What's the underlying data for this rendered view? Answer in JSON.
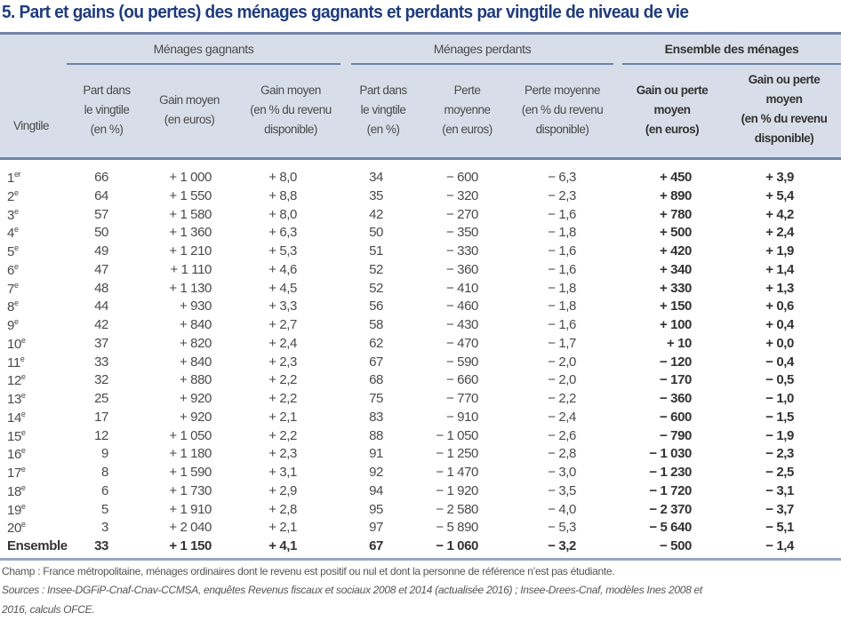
{
  "title": "5. Part et gains (ou pertes) des ménages gagnants et perdants par vingtile de niveau de vie",
  "groups": {
    "gagnants": "Ménages gagnants",
    "perdants": "Ménages perdants",
    "ensemble": "Ensemble des ménages"
  },
  "columns": [
    "Vingtile",
    "Part dans\nle vingtile\n(en %)",
    "Gain moyen\n(en euros)",
    "Gain moyen\n(en % du revenu\ndisponible)",
    "Part dans\nle vingtile\n(en %)",
    "Perte\nmoyenne\n(en euros)",
    "Perte moyenne\n(en % du revenu\ndisponible)",
    "Gain ou perte\nmoyen\n(en euros)",
    "Gain ou perte\nmoyen\n(en % du revenu\ndisponible)"
  ],
  "rows": [
    [
      "1",
      "er",
      "66",
      "+ 1 000",
      "+ 8,0",
      "34",
      "− 600",
      "− 6,3",
      "+ 450",
      "+ 3,9"
    ],
    [
      "2",
      "e",
      "64",
      "+ 1 550",
      "+ 8,8",
      "35",
      "− 320",
      "− 2,3",
      "+ 890",
      "+ 5,4"
    ],
    [
      "3",
      "e",
      "57",
      "+ 1 580",
      "+ 8,0",
      "42",
      "− 270",
      "− 1,6",
      "+ 780",
      "+ 4,2"
    ],
    [
      "4",
      "e",
      "50",
      "+ 1 360",
      "+ 6,3",
      "50",
      "− 350",
      "− 1,8",
      "+ 500",
      "+ 2,4"
    ],
    [
      "5",
      "e",
      "49",
      "+ 1 210",
      "+ 5,3",
      "51",
      "− 330",
      "− 1,6",
      "+ 420",
      "+ 1,9"
    ],
    [
      "6",
      "e",
      "47",
      "+ 1 110",
      "+ 4,6",
      "52",
      "− 360",
      "− 1,6",
      "+ 340",
      "+ 1,4"
    ],
    [
      "7",
      "e",
      "48",
      "+ 1 130",
      "+ 4,5",
      "52",
      "− 410",
      "− 1,8",
      "+ 330",
      "+ 1,3"
    ],
    [
      "8",
      "e",
      "44",
      "+ 930",
      "+ 3,3",
      "56",
      "− 460",
      "− 1,8",
      "+ 150",
      "+ 0,6"
    ],
    [
      "9",
      "e",
      "42",
      "+ 840",
      "+ 2,7",
      "58",
      "− 430",
      "− 1,6",
      "+ 100",
      "+ 0,4"
    ],
    [
      "10",
      "e",
      "37",
      "+ 820",
      "+ 2,4",
      "62",
      "− 470",
      "− 1,7",
      "+ 10",
      "+ 0,0"
    ],
    [
      "11",
      "e",
      "33",
      "+ 840",
      "+ 2,3",
      "67",
      "− 590",
      "− 2,0",
      "− 120",
      "− 0,4"
    ],
    [
      "12",
      "e",
      "32",
      "+ 880",
      "+ 2,2",
      "68",
      "− 660",
      "− 2,0",
      "− 170",
      "− 0,5"
    ],
    [
      "13",
      "e",
      "25",
      "+ 920",
      "+ 2,2",
      "75",
      "− 770",
      "− 2,2",
      "− 360",
      "− 1,0"
    ],
    [
      "14",
      "e",
      "17",
      "+ 920",
      "+ 2,1",
      "83",
      "− 910",
      "− 2,4",
      "− 600",
      "− 1,5"
    ],
    [
      "15",
      "e",
      "12",
      "+ 1 050",
      "+ 2,2",
      "88",
      "− 1 050",
      "− 2,6",
      "− 790",
      "− 1,9"
    ],
    [
      "16",
      "e",
      "9",
      "+ 1 180",
      "+ 2,3",
      "91",
      "− 1 250",
      "− 2,8",
      "− 1 030",
      "− 2,3"
    ],
    [
      "17",
      "e",
      "8",
      "+ 1 590",
      "+ 3,1",
      "92",
      "− 1 470",
      "− 3,0",
      "− 1 230",
      "− 2,5"
    ],
    [
      "18",
      "e",
      "6",
      "+ 1 730",
      "+ 2,9",
      "94",
      "− 1 920",
      "− 3,5",
      "− 1 720",
      "− 3,1"
    ],
    [
      "19",
      "e",
      "5",
      "+ 1 910",
      "+ 2,8",
      "95",
      "− 2 580",
      "− 4,0",
      "− 2 370",
      "− 3,7"
    ],
    [
      "20",
      "e",
      "3",
      "+ 2 040",
      "+ 2,1",
      "97",
      "− 5 890",
      "− 5,3",
      "− 5 640",
      "− 5,1"
    ],
    [
      "Ensemble",
      "",
      "33",
      "+ 1 150",
      "+ 4,1",
      "67",
      "− 1 060",
      "− 3,2",
      "− 500",
      "− 1,4"
    ]
  ],
  "footer": {
    "champ": "Champ : France métropolitaine, ménages ordinaires dont le revenu est positif ou nul et dont la personne de référence n’est pas étudiante.",
    "sources_1": "Sources : Insee-DGFiP-Cnaf-Cnav-CCMSA, enquêtes Revenus fiscaux et sociaux 2008 et 2014 (actualisée 2016) ;  Insee-Drees-Cnaf, modèles Ines 2008 et",
    "sources_2": "2016, calculs OFCE."
  },
  "colors": {
    "title": "#1f3c7c",
    "header_bg": "#d8dee9",
    "rule": "#7184a8"
  }
}
